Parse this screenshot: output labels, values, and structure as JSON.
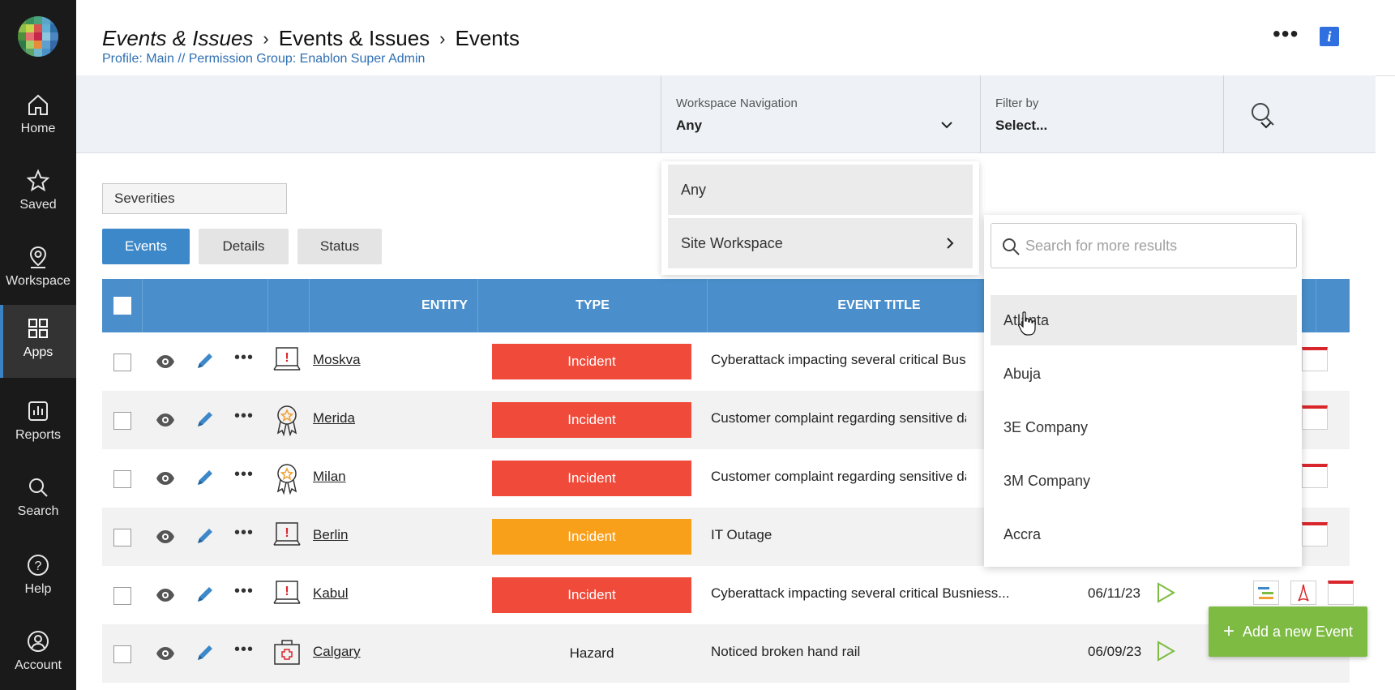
{
  "nav": {
    "items": [
      {
        "label": "Home",
        "icon": "home-icon"
      },
      {
        "label": "Saved",
        "icon": "star-icon"
      },
      {
        "label": "Workspace",
        "icon": "map-pin-icon"
      },
      {
        "label": "Apps",
        "icon": "apps-grid-icon",
        "active": true
      },
      {
        "label": "Reports",
        "icon": "bar-chart-icon"
      },
      {
        "label": "Search",
        "icon": "search-icon"
      },
      {
        "label": "Help",
        "icon": "help-icon"
      },
      {
        "label": "Account",
        "icon": "account-icon"
      }
    ]
  },
  "header": {
    "breadcrumb": [
      "Events & Issues",
      "Events & Issues",
      "Events"
    ],
    "profile": "Profile: Main // Permission Group: Enablon Super Admin",
    "more_label": "•••",
    "info_label": "i"
  },
  "filterbar": {
    "workspace": {
      "label": "Workspace Navigation",
      "value": "Any"
    },
    "filter": {
      "label": "Filter by",
      "value": "Select..."
    }
  },
  "severities_label": "Severities",
  "tabs": [
    "Events",
    "Details",
    "Status"
  ],
  "table": {
    "headers": {
      "entity": "ENTITY",
      "type": "TYPE",
      "title": "EVENT TITLE"
    },
    "rows": [
      {
        "entity": "Moskva",
        "entity_icon": "laptop-alert-icon",
        "type": "Incident",
        "type_color": "#f04a3a",
        "title": "Cyberattack impacting several critical Busnie",
        "date": ""
      },
      {
        "entity": "Merida",
        "entity_icon": "award-ribbon-icon",
        "type": "Incident",
        "type_color": "#f04a3a",
        "title": "Customer complaint regarding sensitive dat",
        "date": ""
      },
      {
        "entity": "Milan",
        "entity_icon": "award-ribbon-icon",
        "type": "Incident",
        "type_color": "#f04a3a",
        "title": "Customer complaint regarding sensitive dat",
        "date": ""
      },
      {
        "entity": "Berlin",
        "entity_icon": "laptop-alert-icon",
        "type": "Incident",
        "type_color": "#f9a01b",
        "title": "IT Outage",
        "date": ""
      },
      {
        "entity": "Kabul",
        "entity_icon": "laptop-alert-icon",
        "type": "Incident",
        "type_color": "#f04a3a",
        "title": "Cyberattack impacting several critical Busniess...",
        "date": "06/11/23"
      },
      {
        "entity": "Calgary",
        "entity_icon": "first-aid-kit-icon",
        "type": "Hazard",
        "type_color": "",
        "title": "Noticed broken hand rail",
        "date": "06/09/23"
      }
    ],
    "row_more_label": "•••"
  },
  "workspace_dropdown": {
    "items": [
      {
        "label": "Any"
      },
      {
        "label": "Site Workspace",
        "has_submenu": true
      }
    ]
  },
  "location_dropdown": {
    "search_placeholder": "Search for more results",
    "items": [
      "Atlanta",
      "Abuja",
      "3E Company",
      "3M Company",
      "Accra"
    ],
    "hovered": "Atlanta"
  },
  "add_button": {
    "label": "Add a new Event",
    "plus": "+"
  },
  "colors": {
    "accent": "#4a8fcb",
    "incident_red": "#f04a3a",
    "incident_orange": "#f9a01b",
    "add_green": "#7dbb42",
    "nav_bg": "#1a1a1a"
  }
}
